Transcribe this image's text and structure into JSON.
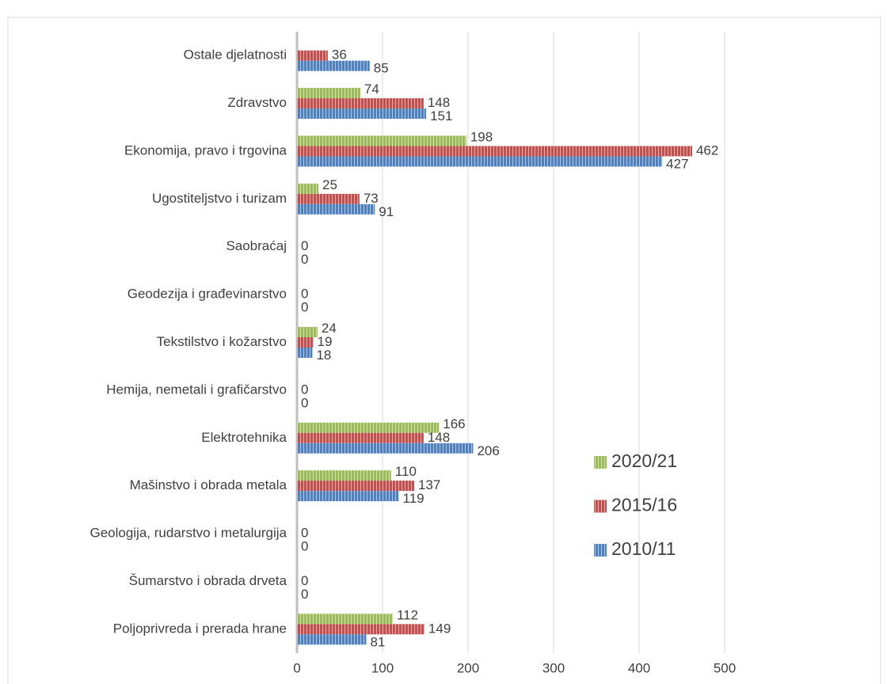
{
  "chart_data": {
    "type": "bar",
    "orientation": "horizontal",
    "categories": [
      "Poljoprivreda i prerada hrane",
      "Šumarstvo i obrada drveta",
      "Geologija, rudarstvo i metalurgija",
      "Mašinstvo i obrada metala",
      "Elektrotehnika",
      "Hemija, nemetali i grafičarstvo",
      "Tekstilstvo i kožarstvo",
      "Geodezija i građevinarstvo",
      "Saobraćaj",
      "Ugostiteljstvo i turizam",
      "Ekonomija, pravo i trgovina",
      "Zdravstvo",
      "Ostale djelatnosti"
    ],
    "series": [
      {
        "name": "2020/21",
        "color": "#9bbb59",
        "values": [
          112,
          null,
          null,
          110,
          166,
          null,
          24,
          null,
          null,
          25,
          198,
          74,
          null
        ]
      },
      {
        "name": "2015/16",
        "color": "#c0504d",
        "values": [
          149,
          0,
          0,
          137,
          148,
          0,
          19,
          0,
          0,
          73,
          462,
          148,
          36
        ]
      },
      {
        "name": "2010/11",
        "color": "#4f81bd",
        "values": [
          81,
          0,
          0,
          119,
          206,
          0,
          18,
          0,
          0,
          91,
          427,
          151,
          85
        ]
      }
    ],
    "xlim": [
      0,
      500
    ],
    "xticks": [
      0,
      100,
      200,
      300,
      400,
      500
    ],
    "grid": true,
    "legend": "right"
  }
}
